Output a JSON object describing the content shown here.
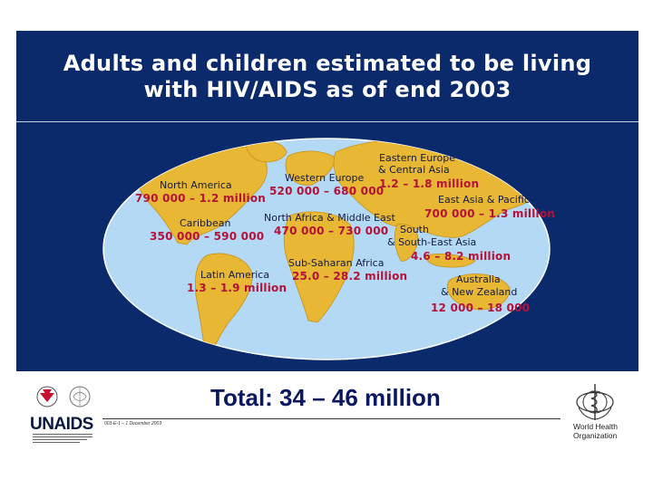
{
  "slide": {
    "title_line1": "Adults and children estimated to be living",
    "title_line2": "with HIV/AIDS as of end 2003",
    "total": "Total: 34 – 46 million",
    "footer_code": "003-E-1 – 1 December 2003"
  },
  "regions": [
    {
      "name": "North America",
      "value": "790 000 – 1.2 million"
    },
    {
      "name": "Caribbean",
      "value": "350 000 – 590 000"
    },
    {
      "name": "Latin America",
      "value": "1.3 – 1.9 million"
    },
    {
      "name": "Western Europe",
      "value": "520 000 – 680 000"
    },
    {
      "name": "North Africa & Middle East",
      "value": "470 000 – 730 000"
    },
    {
      "name": "Sub-Saharan Africa",
      "value": "25.0 – 28.2 million"
    },
    {
      "name_line1": "Eastern Europe",
      "name_line2": "& Central Asia",
      "value": "1.2 – 1.8 million"
    },
    {
      "name": "East Asia & Pacific",
      "value": "700 000 – 1.3 million"
    },
    {
      "name_line1": "South",
      "name_line2": "& South-East Asia",
      "value": "4.6 – 8.2 million"
    },
    {
      "name_line1": "Australia",
      "name_line2": "& New Zealand",
      "value": "12 000 – 18 000"
    }
  ],
  "logos": {
    "unaids": "UNAIDS",
    "who_line1": "World Health",
    "who_line2": "Organization"
  },
  "colors": {
    "panel": "#0b2a6b",
    "ocean": "#b4d9f4",
    "land": "#e8b733",
    "value_text": "#b5123a",
    "unaids_red": "#c8102e"
  }
}
